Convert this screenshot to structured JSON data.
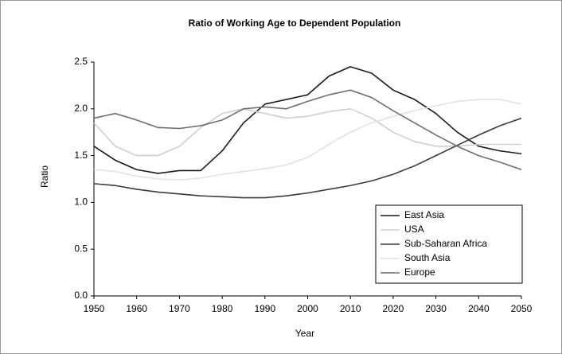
{
  "chart_data": {
    "type": "line",
    "title": "Ratio of Working Age to Dependent Population",
    "x_label": "Year",
    "y_label": "Ratio",
    "x": [
      1950,
      1955,
      1960,
      1965,
      1970,
      1975,
      1980,
      1985,
      1990,
      1995,
      2000,
      2005,
      2010,
      2015,
      2020,
      2025,
      2030,
      2035,
      2040,
      2045,
      2050
    ],
    "series": [
      {
        "name": "East Asia",
        "color": "#1a1a1a",
        "values": [
          1.6,
          1.45,
          1.35,
          1.31,
          1.34,
          1.34,
          1.55,
          1.85,
          2.05,
          2.1,
          2.15,
          2.35,
          2.45,
          2.38,
          2.2,
          2.1,
          1.95,
          1.75,
          1.6,
          1.55,
          1.52
        ]
      },
      {
        "name": "USA",
        "color": "#cfcfcf",
        "values": [
          1.85,
          1.6,
          1.5,
          1.5,
          1.6,
          1.8,
          1.95,
          2.0,
          1.95,
          1.9,
          1.92,
          1.97,
          2.0,
          1.9,
          1.75,
          1.65,
          1.6,
          1.6,
          1.62,
          1.62,
          1.62
        ]
      },
      {
        "name": "Sub-Saharan Africa",
        "color": "#3c3c3c",
        "values": [
          1.2,
          1.18,
          1.14,
          1.11,
          1.09,
          1.07,
          1.06,
          1.05,
          1.05,
          1.07,
          1.1,
          1.14,
          1.18,
          1.23,
          1.3,
          1.39,
          1.5,
          1.61,
          1.72,
          1.82,
          1.9
        ]
      },
      {
        "name": "South Asia",
        "color": "#e2e2e2",
        "values": [
          1.35,
          1.33,
          1.28,
          1.25,
          1.24,
          1.26,
          1.3,
          1.33,
          1.36,
          1.4,
          1.48,
          1.62,
          1.75,
          1.85,
          1.92,
          1.98,
          2.03,
          2.08,
          2.1,
          2.1,
          2.05
        ]
      },
      {
        "name": "Europe",
        "color": "#6e6e6e",
        "values": [
          1.9,
          1.95,
          1.88,
          1.8,
          1.79,
          1.82,
          1.88,
          2.0,
          2.02,
          2.0,
          2.08,
          2.15,
          2.2,
          2.12,
          1.98,
          1.85,
          1.72,
          1.6,
          1.5,
          1.43,
          1.35
        ]
      }
    ],
    "xlim": [
      1950,
      2050
    ],
    "xticks": [
      1950,
      1960,
      1970,
      1980,
      1990,
      2000,
      2010,
      2020,
      2030,
      2040,
      2050
    ],
    "ylim": [
      0,
      2.5
    ],
    "yticks": [
      {
        "value": 0,
        "label": "0.0"
      },
      0.5,
      {
        "value": 1,
        "label": "1.0"
      },
      1.5,
      {
        "value": 2,
        "label": "2.0"
      },
      2.5
    ],
    "legend": "lower right"
  }
}
